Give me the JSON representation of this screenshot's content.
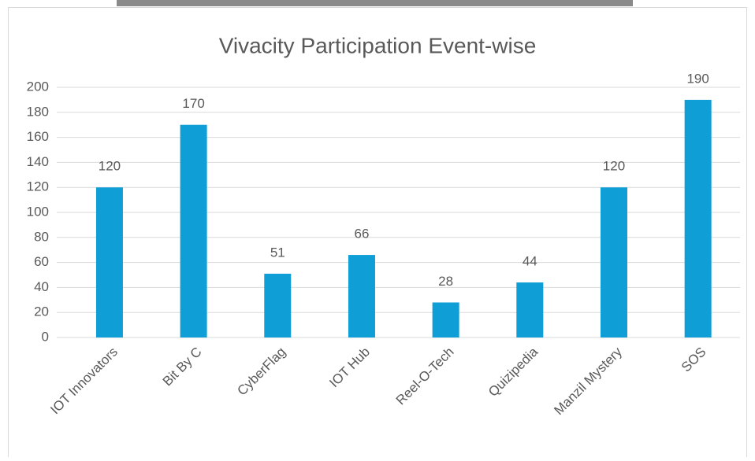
{
  "chart_data": {
    "type": "bar",
    "title": "Vivacity Participation Event-wise",
    "categories": [
      "IOT Innovators",
      "Bit By C",
      "CyberFlag",
      "IOT Hub",
      "Reel-O-Tech",
      "Quizipedia",
      "Manzil Mystery",
      "SOS"
    ],
    "values": [
      120,
      170,
      51,
      66,
      28,
      44,
      120,
      190
    ],
    "color": "#0f9ed5",
    "ylim": [
      0,
      200
    ],
    "yticks": [
      0,
      20,
      40,
      60,
      80,
      100,
      120,
      140,
      160,
      180,
      200
    ],
    "grid": true
  }
}
